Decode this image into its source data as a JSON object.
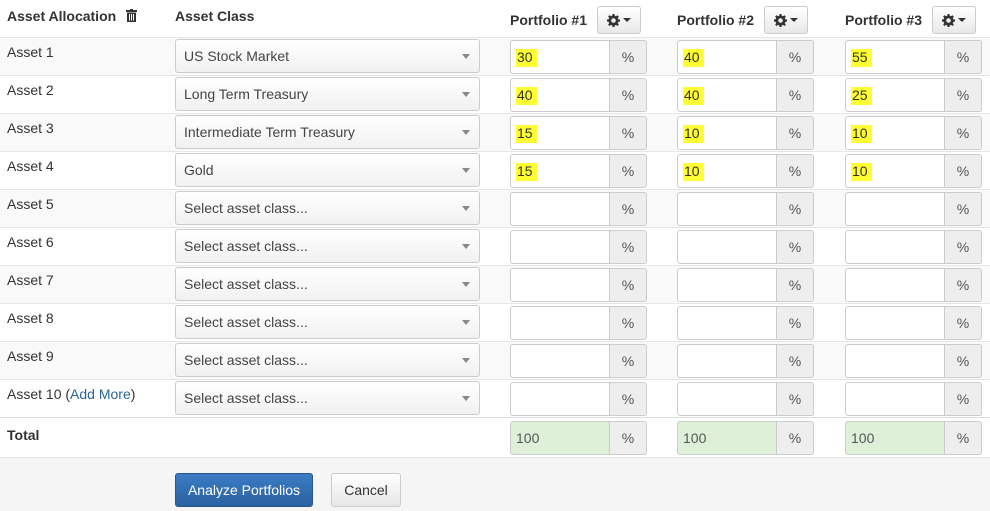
{
  "header": {
    "allocation_label": "Asset Allocation",
    "asset_class_label": "Asset Class",
    "portfolios": [
      "Portfolio #1",
      "Portfolio #2",
      "Portfolio #3"
    ]
  },
  "rows": [
    {
      "label": "Asset 1",
      "asset_class": "US Stock Market",
      "values": [
        "30",
        "40",
        "55"
      ]
    },
    {
      "label": "Asset 2",
      "asset_class": "Long Term Treasury",
      "values": [
        "40",
        "40",
        "25"
      ]
    },
    {
      "label": "Asset 3",
      "asset_class": "Intermediate Term Treasury",
      "values": [
        "15",
        "10",
        "10"
      ]
    },
    {
      "label": "Asset 4",
      "asset_class": "Gold",
      "values": [
        "15",
        "10",
        "10"
      ]
    },
    {
      "label": "Asset 5",
      "asset_class": "Select asset class...",
      "values": [
        "",
        "",
        ""
      ]
    },
    {
      "label": "Asset 6",
      "asset_class": "Select asset class...",
      "values": [
        "",
        "",
        ""
      ]
    },
    {
      "label": "Asset 7",
      "asset_class": "Select asset class...",
      "values": [
        "",
        "",
        ""
      ]
    },
    {
      "label": "Asset 8",
      "asset_class": "Select asset class...",
      "values": [
        "",
        "",
        ""
      ]
    },
    {
      "label": "Asset 9",
      "asset_class": "Select asset class...",
      "values": [
        "",
        "",
        ""
      ]
    },
    {
      "label": "Asset 10",
      "asset_class": "Select asset class...",
      "values": [
        "",
        "",
        ""
      ]
    }
  ],
  "add_more": {
    "prefix": "(",
    "link": "Add More",
    "suffix": ")"
  },
  "percent_symbol": "%",
  "total": {
    "label": "Total",
    "values": [
      "100",
      "100",
      "100"
    ]
  },
  "buttons": {
    "analyze": "Analyze Portfolios",
    "cancel": "Cancel"
  },
  "colors": {
    "highlight": "#ffff33",
    "total_bg": "#dff0d8",
    "primary": "#2c62a0",
    "link": "#2a6496"
  }
}
